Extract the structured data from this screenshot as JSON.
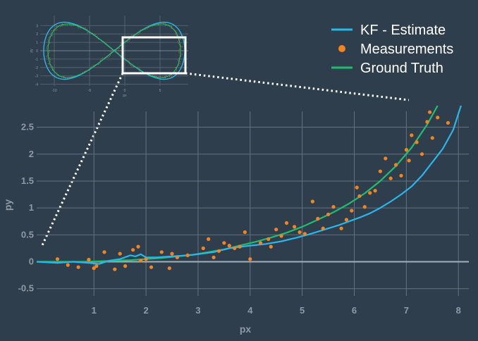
{
  "chart_data": {
    "type": "line",
    "xlabel": "px",
    "ylabel": "py",
    "xlim": [
      -0.1,
      8.2
    ],
    "ylim": [
      -0.7,
      2.9
    ],
    "x_ticks": [
      1,
      2,
      3,
      4,
      5,
      6,
      7,
      8
    ],
    "y_ticks": [
      -0.5,
      0,
      0.5,
      1,
      1.5,
      2,
      2.5
    ],
    "grid": true,
    "legend_position": "top-right",
    "series": [
      {
        "name": "KF - Estimate",
        "kind": "line",
        "color": "#29b6e8",
        "x": [
          -0.1,
          0.3,
          0.6,
          0.9,
          1.1,
          1.3,
          1.5,
          1.7,
          1.8,
          1.9,
          2.0,
          2.2,
          2.5,
          2.8,
          3.0,
          3.3,
          3.6,
          4.0,
          4.3,
          4.6,
          4.9,
          5.1,
          5.3,
          5.5,
          5.7,
          5.9,
          6.1,
          6.3,
          6.5,
          6.7,
          6.9,
          7.1,
          7.3,
          7.5,
          7.7,
          7.9,
          8.05
        ],
        "y": [
          0.0,
          -0.02,
          0.0,
          -0.02,
          -0.04,
          0.02,
          0.05,
          0.12,
          0.1,
          0.14,
          0.08,
          0.08,
          0.1,
          0.12,
          0.14,
          0.18,
          0.25,
          0.3,
          0.33,
          0.38,
          0.45,
          0.5,
          0.56,
          0.62,
          0.68,
          0.75,
          0.82,
          0.9,
          1.0,
          1.12,
          1.25,
          1.4,
          1.6,
          1.85,
          2.1,
          2.45,
          2.9
        ]
      },
      {
        "name": "Measurements",
        "kind": "scatter",
        "color": "#f5841f",
        "x": [
          0.3,
          0.5,
          0.7,
          0.9,
          1.0,
          1.05,
          1.2,
          1.4,
          1.5,
          1.6,
          1.75,
          1.85,
          1.9,
          2.0,
          2.1,
          2.3,
          2.45,
          2.5,
          2.6,
          2.8,
          3.1,
          3.2,
          3.3,
          3.4,
          3.5,
          3.6,
          3.7,
          3.8,
          3.9,
          4.0,
          4.2,
          4.35,
          4.4,
          4.5,
          4.6,
          4.7,
          4.85,
          4.95,
          5.05,
          5.2,
          5.3,
          5.4,
          5.5,
          5.6,
          5.75,
          5.85,
          5.95,
          6.05,
          6.1,
          6.2,
          6.3,
          6.4,
          6.5,
          6.6,
          6.7,
          6.8,
          6.9,
          7.0,
          7.05,
          7.1,
          7.2,
          7.3,
          7.4,
          7.45,
          7.5,
          7.6,
          7.8
        ],
        "y": [
          0.05,
          -0.06,
          -0.1,
          0.04,
          -0.12,
          -0.08,
          0.18,
          -0.14,
          0.15,
          -0.08,
          0.22,
          0.28,
          0.02,
          0.05,
          -0.1,
          0.18,
          -0.12,
          0.15,
          0.08,
          0.12,
          0.25,
          0.42,
          0.08,
          0.2,
          0.35,
          0.3,
          0.25,
          0.28,
          0.55,
          0.05,
          0.35,
          0.42,
          0.28,
          0.6,
          0.48,
          0.72,
          0.65,
          0.55,
          0.52,
          1.12,
          0.8,
          0.62,
          0.88,
          1.02,
          0.62,
          0.78,
          0.95,
          1.38,
          1.22,
          1.02,
          1.28,
          1.32,
          1.68,
          1.92,
          1.55,
          1.8,
          1.6,
          2.08,
          1.88,
          2.35,
          2.22,
          2.0,
          2.6,
          2.78,
          2.3,
          2.68,
          2.58
        ]
      },
      {
        "name": "Ground Truth",
        "kind": "line",
        "color": "#1fbe6f",
        "x": [
          -0.1,
          0.2,
          0.5,
          0.8,
          1.1,
          1.4,
          1.7,
          2.0,
          2.3,
          2.6,
          2.9,
          3.2,
          3.5,
          3.8,
          4.1,
          4.4,
          4.7,
          5.0,
          5.3,
          5.6,
          5.9,
          6.2,
          6.5,
          6.8,
          7.1,
          7.4,
          7.6
        ],
        "y": [
          0.0,
          0.0,
          0.0,
          0.0,
          0.01,
          0.02,
          0.03,
          0.05,
          0.07,
          0.1,
          0.13,
          0.18,
          0.23,
          0.3,
          0.37,
          0.45,
          0.54,
          0.65,
          0.78,
          0.92,
          1.08,
          1.27,
          1.5,
          1.78,
          2.12,
          2.55,
          2.9
        ]
      }
    ],
    "inset": {
      "description_free": true,
      "x_ticks": [
        -10,
        -5,
        0,
        5
      ],
      "y_ticks": [
        -4,
        -3,
        -2,
        -1,
        0,
        1,
        2,
        3
      ],
      "xlabel": "px",
      "ylabel": "py"
    }
  }
}
